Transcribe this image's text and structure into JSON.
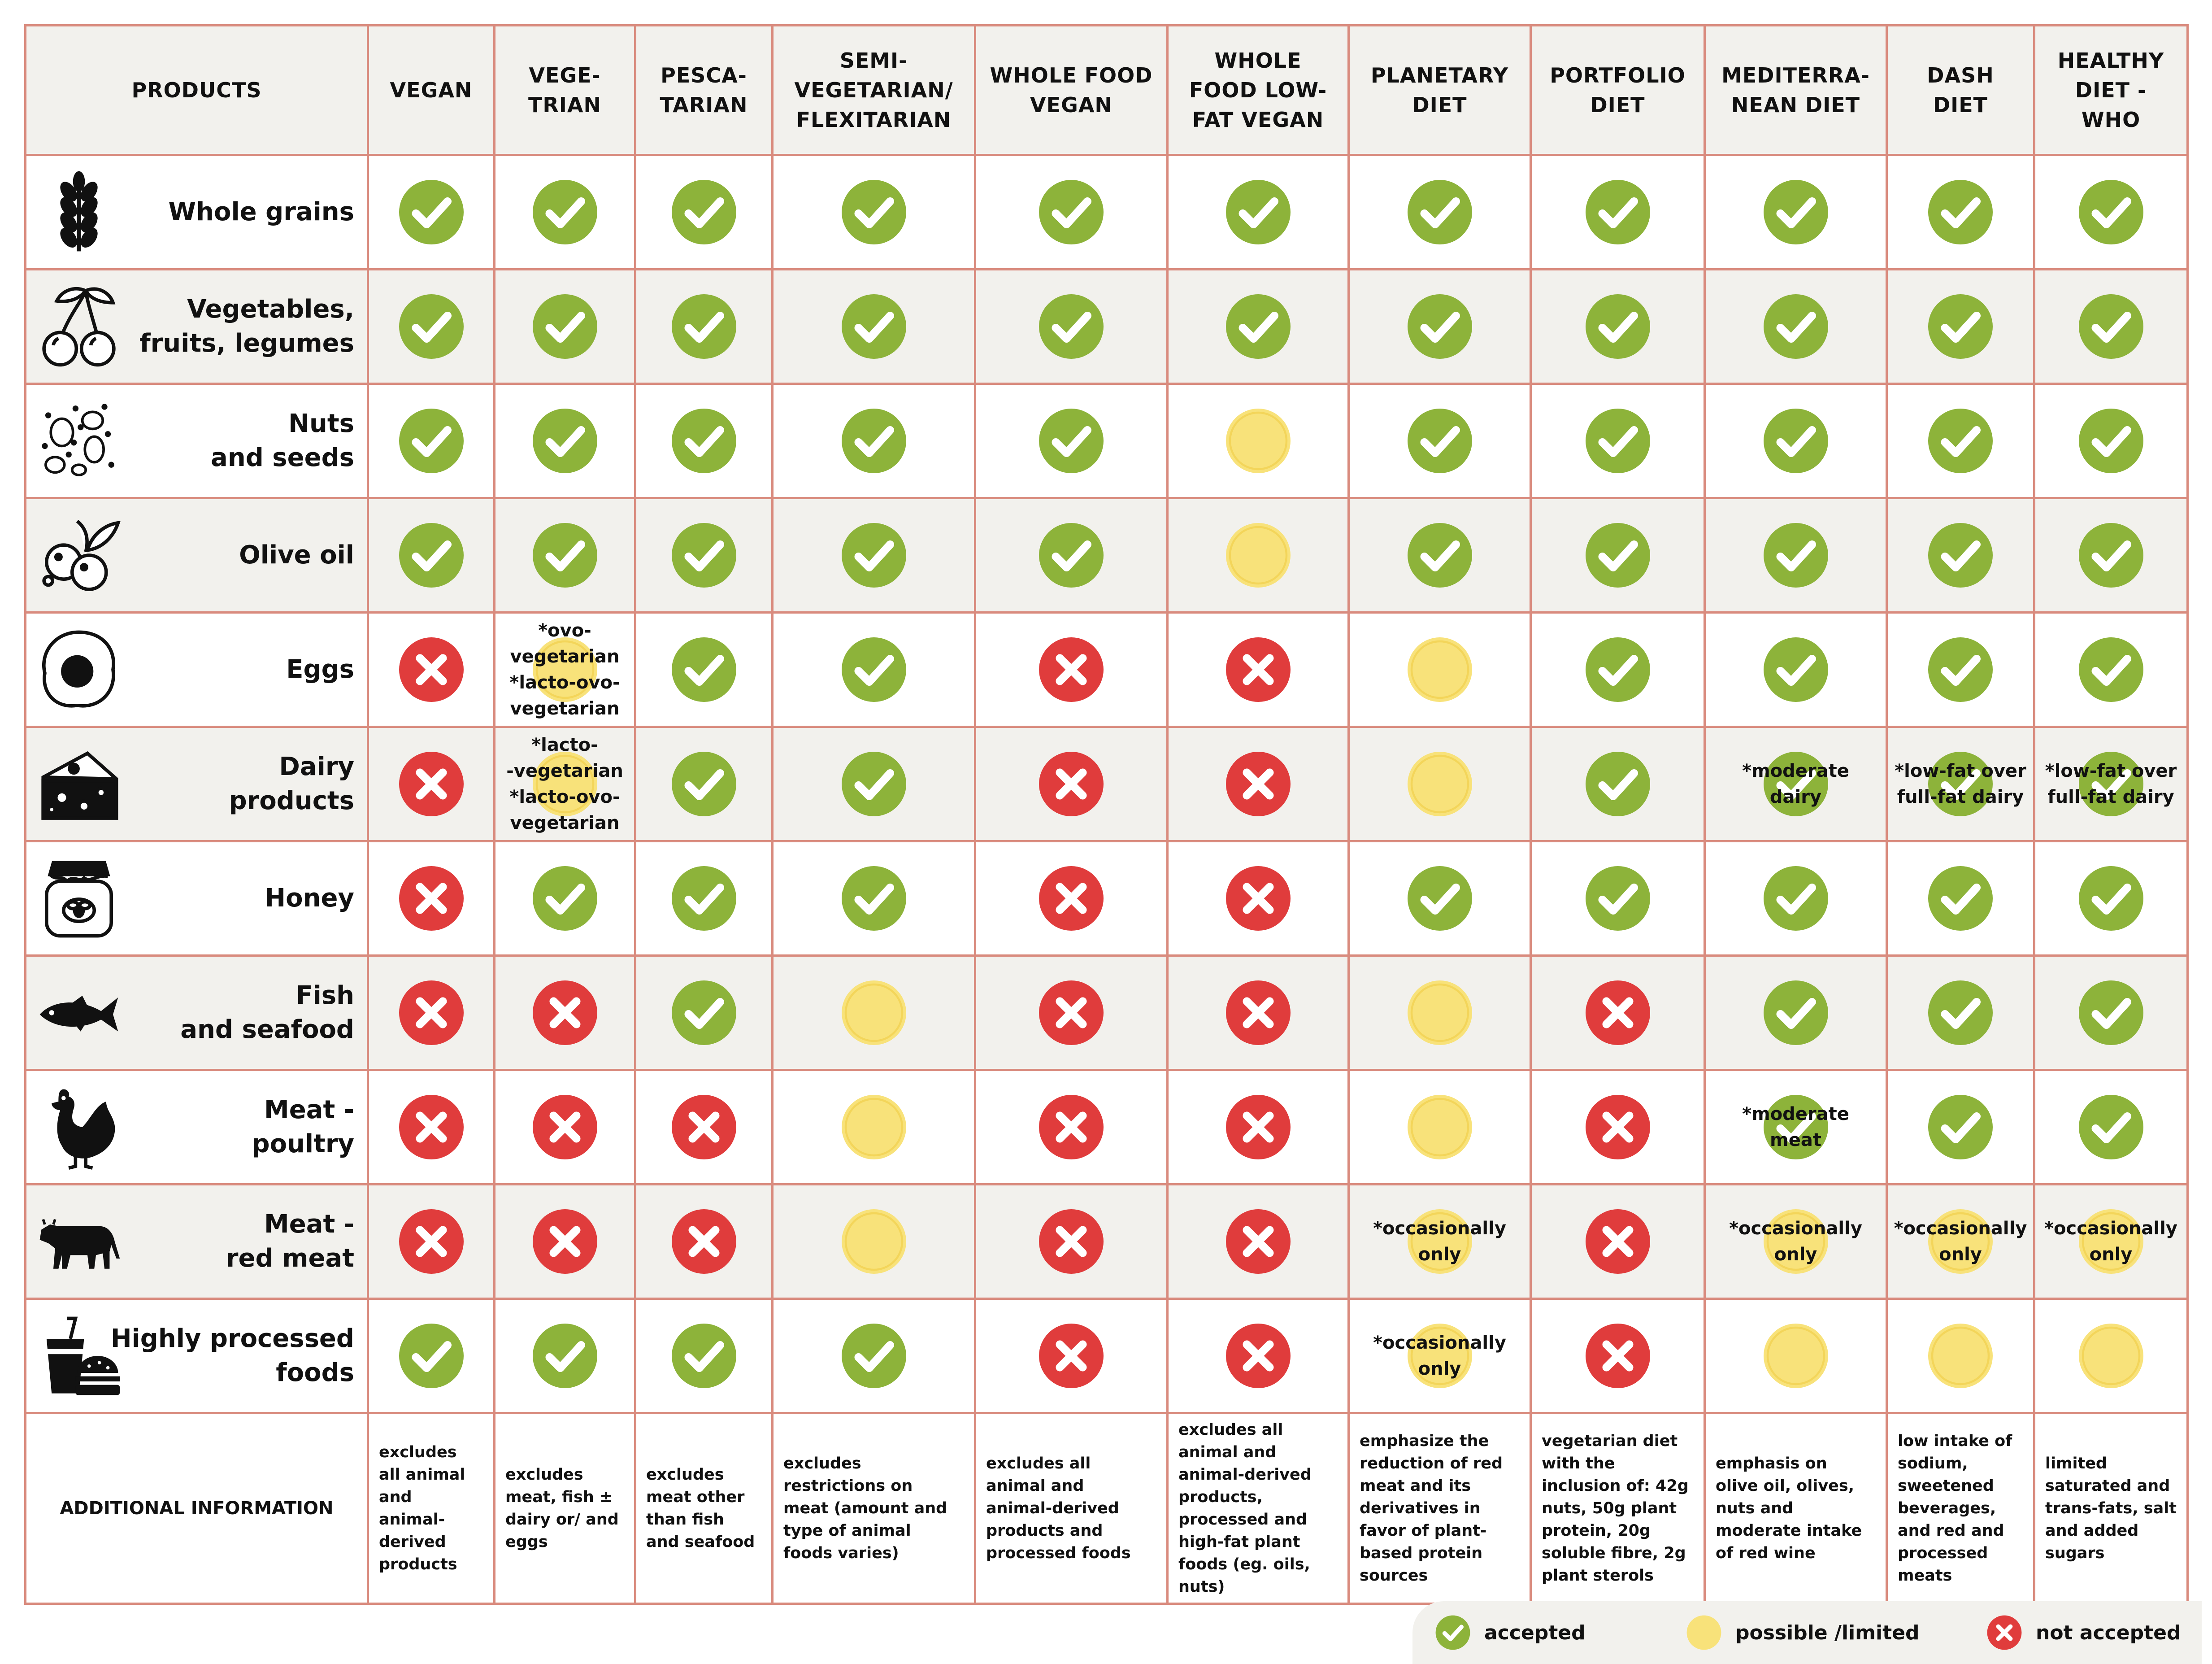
{
  "colors": {
    "accepted": "#8db33a",
    "possible": "#f8e27a",
    "not_accepted": "#e03c3c",
    "grid_line": "#d98b7e",
    "stripe": "#f2f1ed"
  },
  "table": {
    "first_column_header": "PRODUCTS",
    "columns": [
      "VEGAN",
      "VEGE-\nTRIAN",
      "PESCA-\nTARIAN",
      "SEMI-\nVEGETARIAN/\nFLEXITARIAN",
      "WHOLE FOOD\nVEGAN",
      "WHOLE\nFOOD LOW-\nFAT VEGAN",
      "PLANETARY\nDIET",
      "PORTFOLIO\nDIET",
      "MEDITERRA-\nNEAN DIET",
      "DASH\nDIET",
      "HEALTHY\nDIET -\nWHO"
    ],
    "rows": [
      {
        "label": "Whole grains",
        "icon": "wheat-icon",
        "cells": [
          {
            "s": "y"
          },
          {
            "s": "y"
          },
          {
            "s": "y"
          },
          {
            "s": "y"
          },
          {
            "s": "y"
          },
          {
            "s": "y"
          },
          {
            "s": "y"
          },
          {
            "s": "y"
          },
          {
            "s": "y"
          },
          {
            "s": "y"
          },
          {
            "s": "y"
          }
        ]
      },
      {
        "label": "Vegetables,\nfruits, legumes",
        "icon": "cherries-icon",
        "cells": [
          {
            "s": "y"
          },
          {
            "s": "y"
          },
          {
            "s": "y"
          },
          {
            "s": "y"
          },
          {
            "s": "y"
          },
          {
            "s": "y"
          },
          {
            "s": "y"
          },
          {
            "s": "y"
          },
          {
            "s": "y"
          },
          {
            "s": "y"
          },
          {
            "s": "y"
          }
        ]
      },
      {
        "label": "Nuts\nand seeds",
        "icon": "nuts-seeds-icon",
        "cells": [
          {
            "s": "y"
          },
          {
            "s": "y"
          },
          {
            "s": "y"
          },
          {
            "s": "y"
          },
          {
            "s": "y"
          },
          {
            "s": "p"
          },
          {
            "s": "y"
          },
          {
            "s": "y"
          },
          {
            "s": "y"
          },
          {
            "s": "y"
          },
          {
            "s": "y"
          }
        ]
      },
      {
        "label": "Olive oil",
        "icon": "olives-icon",
        "cells": [
          {
            "s": "y"
          },
          {
            "s": "y"
          },
          {
            "s": "y"
          },
          {
            "s": "y"
          },
          {
            "s": "y"
          },
          {
            "s": "p"
          },
          {
            "s": "y"
          },
          {
            "s": "y"
          },
          {
            "s": "y"
          },
          {
            "s": "y"
          },
          {
            "s": "y"
          }
        ]
      },
      {
        "label": "Eggs",
        "icon": "egg-icon",
        "cells": [
          {
            "s": "n"
          },
          {
            "s": "p",
            "note": "*ovo-\nvegetarian\n*lacto-ovo-\nvegetarian"
          },
          {
            "s": "y"
          },
          {
            "s": "y"
          },
          {
            "s": "n"
          },
          {
            "s": "n"
          },
          {
            "s": "p"
          },
          {
            "s": "y"
          },
          {
            "s": "y"
          },
          {
            "s": "y"
          },
          {
            "s": "y"
          }
        ]
      },
      {
        "label": "Dairy\nproducts",
        "icon": "cheese-icon",
        "cells": [
          {
            "s": "n"
          },
          {
            "s": "p",
            "note": "*lacto-\n-vegetarian\n*lacto-ovo-\nvegetarian"
          },
          {
            "s": "y"
          },
          {
            "s": "y"
          },
          {
            "s": "n"
          },
          {
            "s": "n"
          },
          {
            "s": "p"
          },
          {
            "s": "y"
          },
          {
            "s": "y",
            "note": "*moderate\ndairy"
          },
          {
            "s": "y",
            "note": "*low-fat over\nfull-fat dairy"
          },
          {
            "s": "y",
            "note": "*low-fat over\nfull-fat dairy"
          }
        ]
      },
      {
        "label": "Honey",
        "icon": "honey-jar-icon",
        "cells": [
          {
            "s": "n"
          },
          {
            "s": "y"
          },
          {
            "s": "y"
          },
          {
            "s": "y"
          },
          {
            "s": "n"
          },
          {
            "s": "n"
          },
          {
            "s": "y"
          },
          {
            "s": "y"
          },
          {
            "s": "y"
          },
          {
            "s": "y"
          },
          {
            "s": "y"
          }
        ]
      },
      {
        "label": "Fish\nand seafood",
        "icon": "fish-icon",
        "cells": [
          {
            "s": "n"
          },
          {
            "s": "n"
          },
          {
            "s": "y"
          },
          {
            "s": "p"
          },
          {
            "s": "n"
          },
          {
            "s": "n"
          },
          {
            "s": "p"
          },
          {
            "s": "n"
          },
          {
            "s": "y"
          },
          {
            "s": "y"
          },
          {
            "s": "y"
          }
        ]
      },
      {
        "label": "Meat -\npoultry",
        "icon": "chicken-icon",
        "cells": [
          {
            "s": "n"
          },
          {
            "s": "n"
          },
          {
            "s": "n"
          },
          {
            "s": "p"
          },
          {
            "s": "n"
          },
          {
            "s": "n"
          },
          {
            "s": "p"
          },
          {
            "s": "n"
          },
          {
            "s": "y",
            "note": "*moderate\nmeat"
          },
          {
            "s": "y"
          },
          {
            "s": "y"
          }
        ]
      },
      {
        "label": "Meat -\nred meat",
        "icon": "cow-icon",
        "cells": [
          {
            "s": "n"
          },
          {
            "s": "n"
          },
          {
            "s": "n"
          },
          {
            "s": "p"
          },
          {
            "s": "n"
          },
          {
            "s": "n"
          },
          {
            "s": "p",
            "note": "*occasionally\nonly"
          },
          {
            "s": "n"
          },
          {
            "s": "p",
            "note": "*occasionally\nonly"
          },
          {
            "s": "p",
            "note": "*occasionally\nonly"
          },
          {
            "s": "p",
            "note": "*occasionally\nonly"
          }
        ]
      },
      {
        "label": "Highly processed\nfoods",
        "icon": "fast-food-icon",
        "cells": [
          {
            "s": "y"
          },
          {
            "s": "y"
          },
          {
            "s": "y"
          },
          {
            "s": "y"
          },
          {
            "s": "n"
          },
          {
            "s": "n"
          },
          {
            "s": "p",
            "note": "*occasionally\nonly"
          },
          {
            "s": "n"
          },
          {
            "s": "p"
          },
          {
            "s": "p"
          },
          {
            "s": "p"
          }
        ]
      }
    ],
    "additional_info_label": "ADDITIONAL INFORMATION",
    "additional_info": [
      "excludes\nall animal\nand\nanimal-\nderived\nproducts",
      "excludes\nmeat, fish ±\ndairy or/ and\neggs",
      "excludes\nmeat other\nthan fish\nand seafood",
      "excludes\nrestrictions on\nmeat (amount and\ntype of animal\nfoods varies)",
      "excludes all\nanimal and\nanimal-derived\nproducts and\nprocessed foods",
      "excludes all\nanimal and\nanimal-derived\nproducts,\nprocessed and\nhigh-fat plant\nfoods (eg. oils,\nnuts)",
      "emphasize the\nreduction of red\nmeat and its\nderivatives in\nfavor of plant-\nbased protein\nsources",
      "vegetarian diet\nwith the\ninclusion of: 42g\nnuts, 50g plant\nprotein, 20g\nsoluble fibre, 2g\nplant sterols",
      "emphasis on\nolive oil, olives,\nnuts and\nmoderate intake\nof red wine",
      "low intake of\nsodium,\nsweetened\nbeverages,\nand red and\nprocessed\nmeats",
      "limited\nsaturated and\ntrans-fats, salt\nand added\nsugars"
    ]
  },
  "legend": {
    "accepted": "accepted",
    "possible": "possible /limited",
    "not_accepted": "not accepted"
  }
}
